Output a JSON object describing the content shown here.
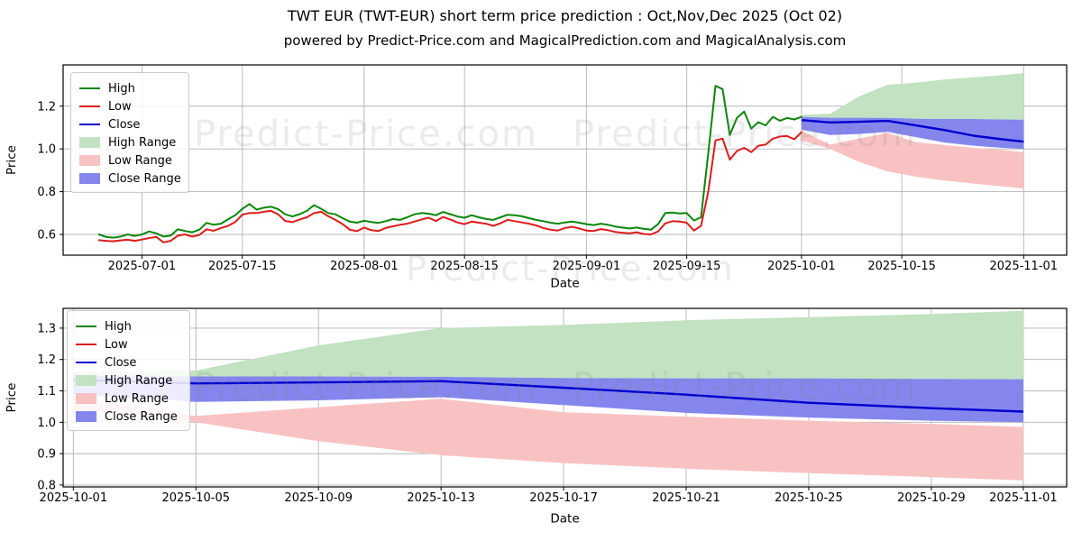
{
  "header": {
    "title": "TWT EUR (TWT-EUR) short term price prediction : Oct,Nov,Dec 2025 (Oct 02)",
    "subtitle": "powered by Predict-Price.com and MagicalPrediction.com and MagicalAnalysis.com"
  },
  "watermark": {
    "text": "Predict-Price.com"
  },
  "colors": {
    "high_line": "#0b860b",
    "low_line": "#dd1c1c",
    "close_line": "#0000cd",
    "high_range_fill": "#c2e2c2",
    "low_range_fill": "#f9c2c2",
    "close_range_fill": "#8486ee",
    "grid": "#b4b4b4",
    "axis": "#000000"
  },
  "legend": {
    "items": [
      {
        "label": "High",
        "swatch": "line",
        "color_key": "high_line"
      },
      {
        "label": "Low",
        "swatch": "line",
        "color_key": "low_line"
      },
      {
        "label": "Close",
        "swatch": "line",
        "color_key": "close_line"
      },
      {
        "label": "High Range",
        "swatch": "patch",
        "color_key": "high_range_fill"
      },
      {
        "label": "Low Range",
        "swatch": "patch",
        "color_key": "low_range_fill"
      },
      {
        "label": "Close Range",
        "swatch": "patch",
        "color_key": "close_range_fill"
      }
    ]
  },
  "chart_data": {
    "type": "line",
    "history": {
      "start_date": "2025-06-25",
      "interval_days": 1,
      "high": [
        0.6,
        0.588,
        0.585,
        0.59,
        0.6,
        0.593,
        0.6,
        0.614,
        0.605,
        0.59,
        0.595,
        0.624,
        0.616,
        0.61,
        0.622,
        0.654,
        0.645,
        0.65,
        0.67,
        0.69,
        0.72,
        0.742,
        0.716,
        0.725,
        0.73,
        0.718,
        0.694,
        0.684,
        0.695,
        0.71,
        0.737,
        0.72,
        0.7,
        0.694,
        0.676,
        0.66,
        0.655,
        0.664,
        0.658,
        0.654,
        0.662,
        0.672,
        0.668,
        0.68,
        0.694,
        0.7,
        0.697,
        0.69,
        0.705,
        0.695,
        0.684,
        0.678,
        0.69,
        0.68,
        0.672,
        0.668,
        0.68,
        0.692,
        0.69,
        0.685,
        0.676,
        0.668,
        0.662,
        0.655,
        0.65,
        0.656,
        0.66,
        0.655,
        0.648,
        0.644,
        0.65,
        0.645,
        0.637,
        0.632,
        0.628,
        0.632,
        0.626,
        0.622,
        0.648,
        0.7,
        0.702,
        0.698,
        0.7,
        0.665,
        0.68,
        0.98,
        1.295,
        1.28,
        1.065,
        1.145,
        1.175,
        1.095,
        1.125,
        1.11,
        1.15,
        1.132,
        1.145,
        1.138,
        1.15
      ],
      "low": [
        0.573,
        0.57,
        0.568,
        0.572,
        0.575,
        0.57,
        0.576,
        0.583,
        0.588,
        0.563,
        0.57,
        0.594,
        0.6,
        0.59,
        0.597,
        0.624,
        0.617,
        0.63,
        0.64,
        0.658,
        0.693,
        0.7,
        0.7,
        0.706,
        0.71,
        0.694,
        0.663,
        0.658,
        0.67,
        0.68,
        0.7,
        0.706,
        0.685,
        0.668,
        0.648,
        0.622,
        0.615,
        0.632,
        0.62,
        0.616,
        0.63,
        0.638,
        0.645,
        0.65,
        0.66,
        0.67,
        0.678,
        0.663,
        0.682,
        0.67,
        0.656,
        0.648,
        0.66,
        0.655,
        0.65,
        0.64,
        0.652,
        0.668,
        0.662,
        0.656,
        0.65,
        0.642,
        0.63,
        0.622,
        0.618,
        0.63,
        0.636,
        0.628,
        0.618,
        0.616,
        0.625,
        0.62,
        0.612,
        0.608,
        0.605,
        0.61,
        0.602,
        0.6,
        0.614,
        0.652,
        0.662,
        0.66,
        0.655,
        0.618,
        0.64,
        0.8,
        1.04,
        1.048,
        0.95,
        0.99,
        1.005,
        0.985,
        1.015,
        1.02,
        1.048,
        1.058,
        1.06,
        1.045,
        1.078
      ]
    },
    "forecast": {
      "dates": [
        "2025-10-01",
        "2025-10-05",
        "2025-10-09",
        "2025-10-13",
        "2025-10-17",
        "2025-10-21",
        "2025-10-25",
        "2025-10-29",
        "2025-11-01"
      ],
      "high_top": [
        1.16,
        1.165,
        1.245,
        1.3,
        1.31,
        1.325,
        1.335,
        1.345,
        1.355
      ],
      "close_top": [
        1.15,
        1.146,
        1.146,
        1.145,
        1.141,
        1.14,
        1.14,
        1.138,
        1.137
      ],
      "close": [
        1.135,
        1.124,
        1.127,
        1.131,
        1.11,
        1.088,
        1.062,
        1.045,
        1.034
      ],
      "close_bottom": [
        1.09,
        1.065,
        1.07,
        1.08,
        1.055,
        1.03,
        1.015,
        1.005,
        1.0
      ],
      "low_top": [
        1.085,
        1.02,
        1.048,
        1.075,
        1.032,
        1.018,
        1.005,
        0.995,
        0.985
      ],
      "low_bottom": [
        1.04,
        1.0,
        0.94,
        0.895,
        0.87,
        0.852,
        0.838,
        0.825,
        0.815
      ]
    },
    "charts": [
      {
        "name": "history-and-forecast",
        "xlabel": "Date",
        "ylabel": "Price",
        "grid": true,
        "legend_position": "upper-left",
        "x_domain": [
          "2025-06-20",
          "2025-11-07"
        ],
        "y_domain": [
          0.503,
          1.393
        ],
        "x_ticks": [
          "2025-07-01",
          "2025-07-15",
          "2025-08-01",
          "2025-08-15",
          "2025-09-01",
          "2025-09-15",
          "2025-10-01",
          "2025-10-15",
          "2025-11-01"
        ],
        "y_ticks": [
          0.6,
          0.8,
          1.0,
          1.2
        ],
        "show_history": true,
        "show_forecast": true
      },
      {
        "name": "forecast-zoom",
        "xlabel": "Date",
        "ylabel": "Price",
        "grid": true,
        "legend_position": "upper-left",
        "x_domain": [
          "2025-09-30T16:00",
          "2025-11-02T10:00"
        ],
        "y_domain": [
          0.794,
          1.363
        ],
        "x_ticks": [
          "2025-10-01",
          "2025-10-05",
          "2025-10-09",
          "2025-10-13",
          "2025-10-17",
          "2025-10-21",
          "2025-10-25",
          "2025-10-29",
          "2025-11-01"
        ],
        "y_ticks": [
          0.8,
          0.9,
          1.0,
          1.1,
          1.2,
          1.3
        ],
        "show_history": false,
        "show_forecast": true
      }
    ]
  }
}
